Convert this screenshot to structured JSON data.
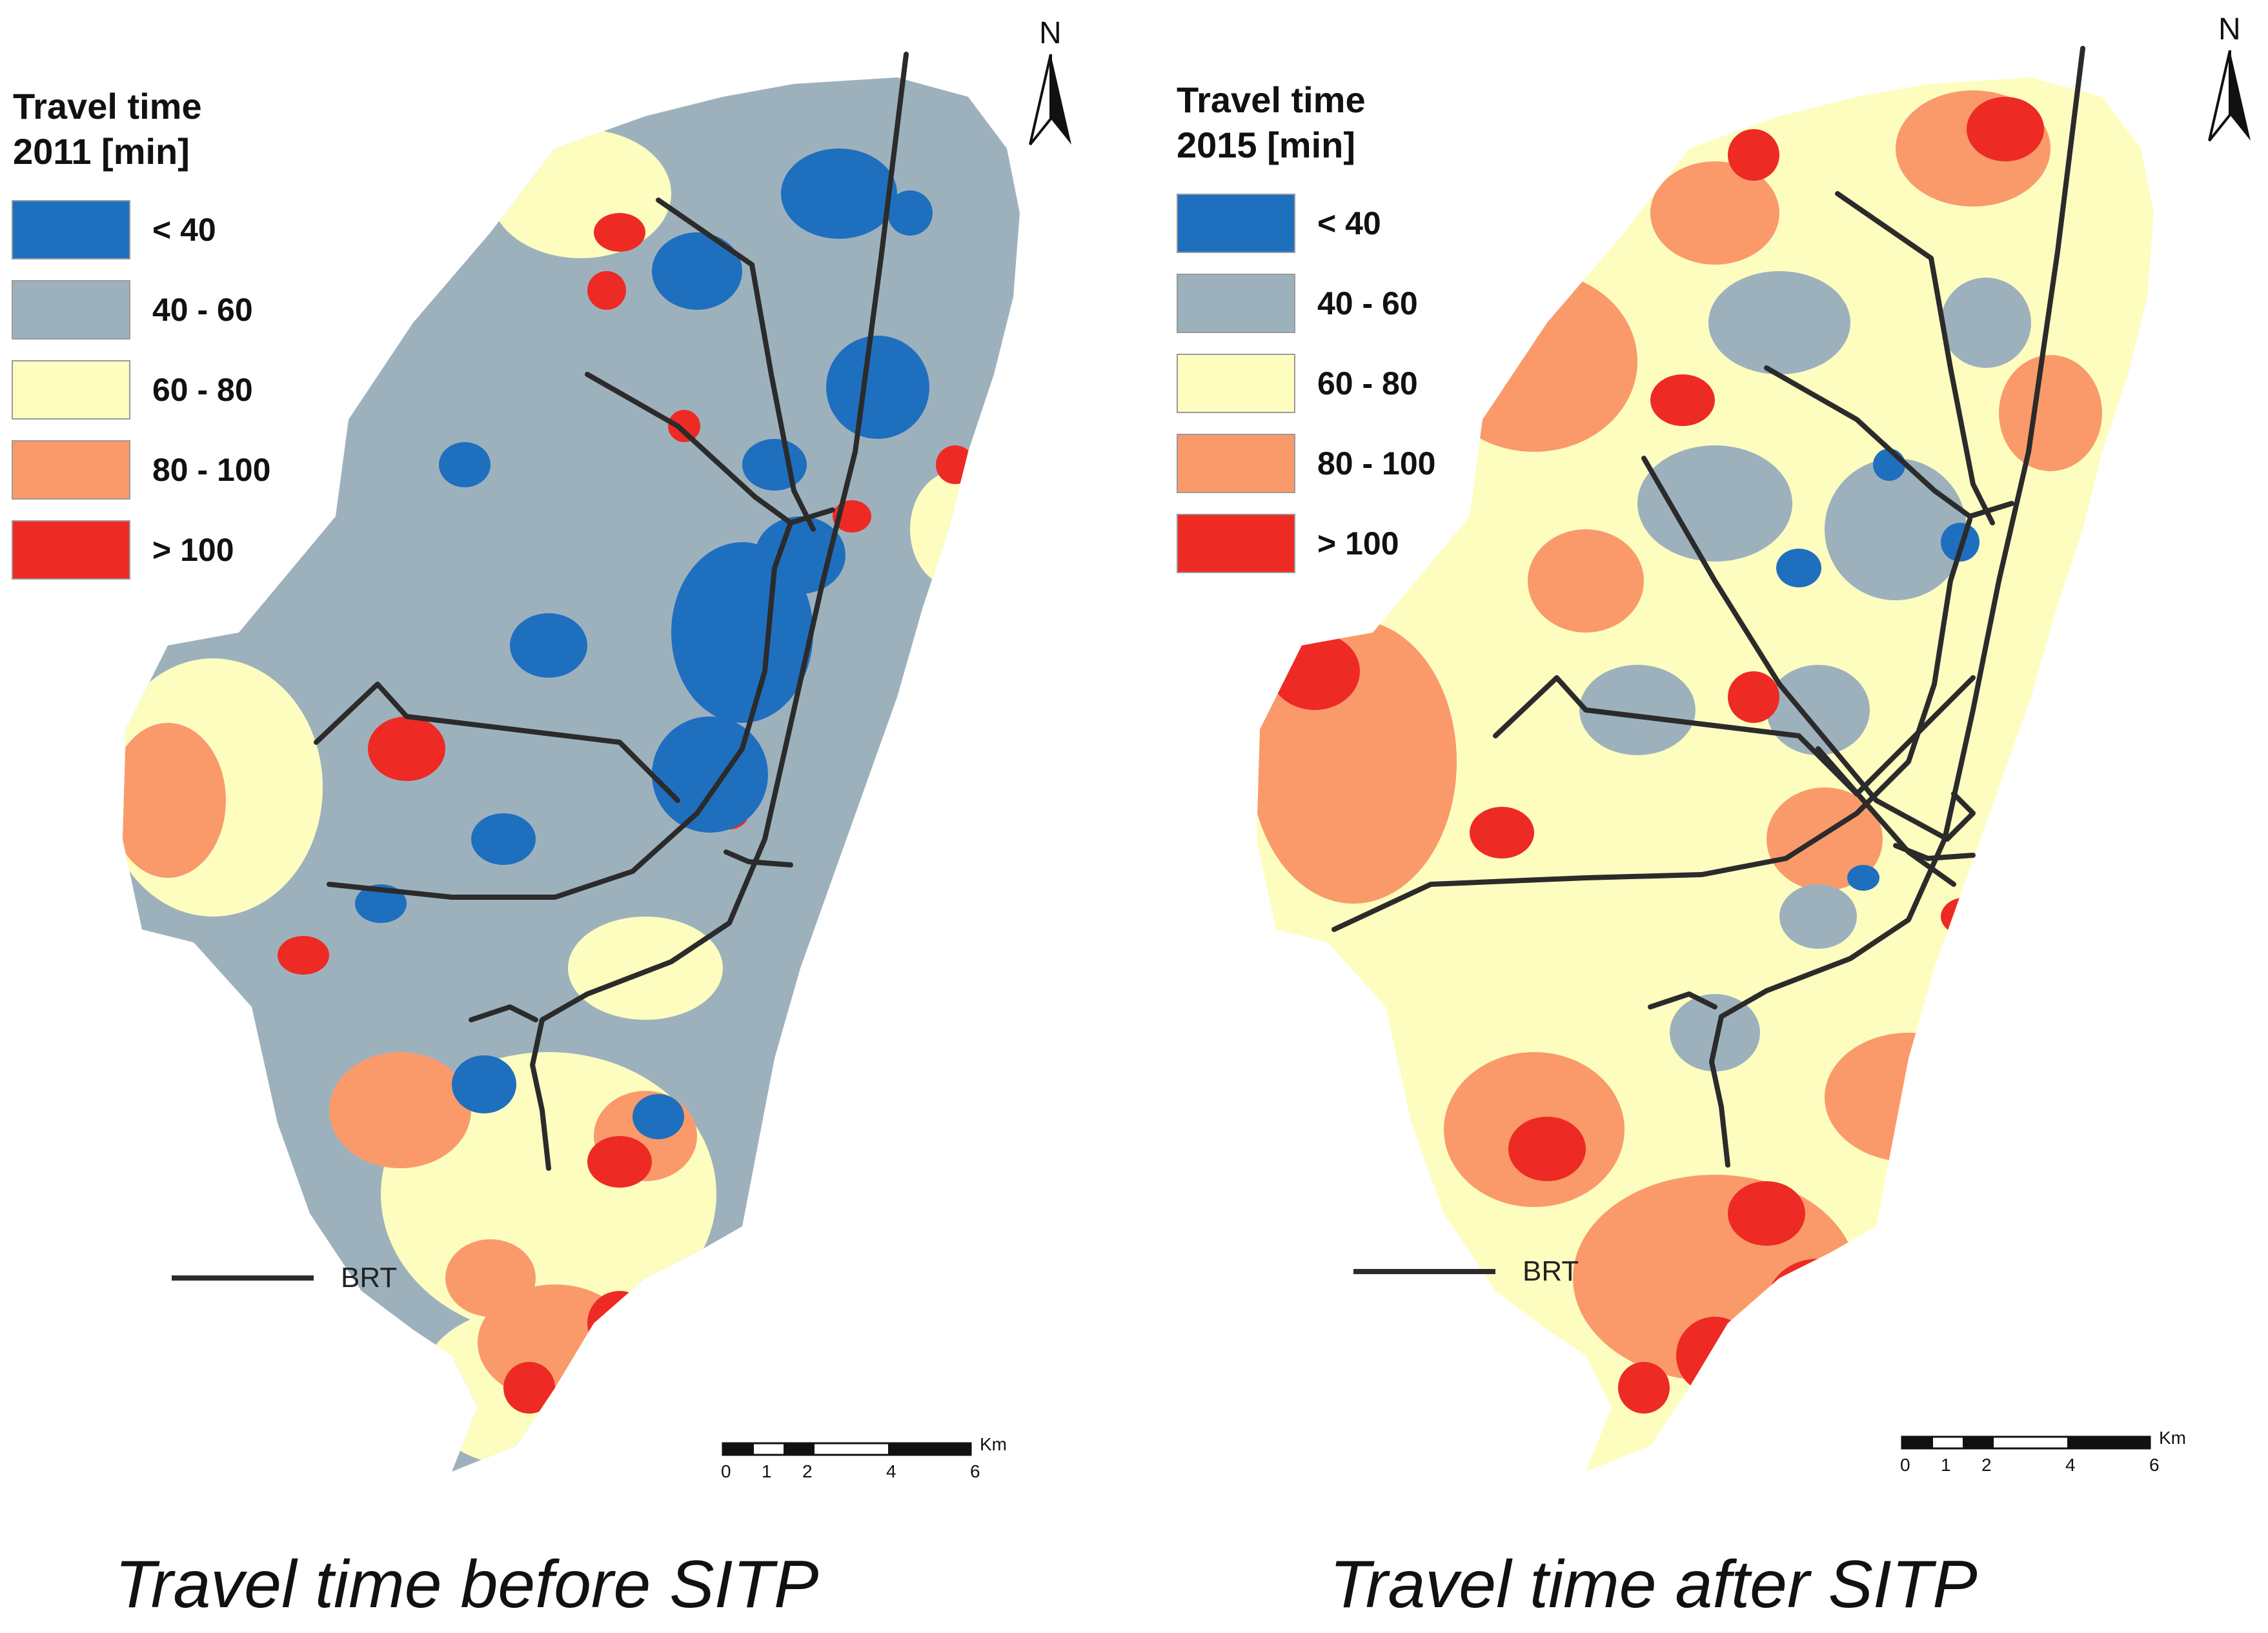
{
  "colors": {
    "lt40": "#1f6fbf",
    "40_60": "#9db1bd",
    "60_80": "#fdfdc0",
    "80_100": "#fa9a6a",
    "gt100": "#ee2a24",
    "brt": "#2b2b2b"
  },
  "panels": [
    {
      "legend": {
        "title_line1": "Travel time",
        "title_line2": "2011 [min]",
        "classes": [
          {
            "label": "< 40",
            "color": "#1f6fbf"
          },
          {
            "label": "40 - 60",
            "color": "#9db1bd"
          },
          {
            "label": "60 - 80",
            "color": "#fdfdc0"
          },
          {
            "label": "80 - 100",
            "color": "#fa9a6a"
          },
          {
            "label": "> 100",
            "color": "#ee2a24"
          }
        ]
      },
      "brt_label": "BRT",
      "north_label": "N",
      "scale": {
        "ticks": [
          "0",
          "1",
          "2",
          "4",
          "6"
        ],
        "unit": "Km"
      },
      "caption": "Travel time before SITP"
    },
    {
      "legend": {
        "title_line1": "Travel time",
        "title_line2": "2015 [min]",
        "classes": [
          {
            "label": "< 40",
            "color": "#1f6fbf"
          },
          {
            "label": "40 - 60",
            "color": "#9db1bd"
          },
          {
            "label": "60 - 80",
            "color": "#fdfdc0"
          },
          {
            "label": "80 - 100",
            "color": "#fa9a6a"
          },
          {
            "label": "> 100",
            "color": "#ee2a24"
          }
        ]
      },
      "brt_label": "BRT",
      "north_label": "N",
      "scale": {
        "ticks": [
          "0",
          "1",
          "2",
          "4",
          "6"
        ],
        "unit": "Km"
      },
      "caption": "Travel time after SITP"
    }
  ]
}
